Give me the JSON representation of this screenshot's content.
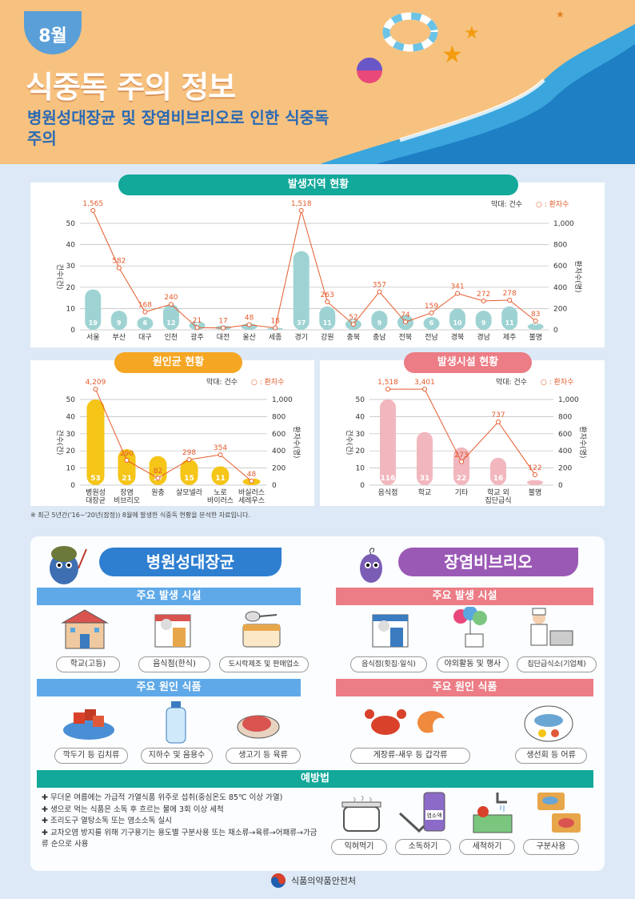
{
  "header": {
    "month": "8월",
    "title": "식중독 주의 정보",
    "subtitle": "병원성대장균 및 장염비브리오로 인한 식중독 주의"
  },
  "legend": {
    "bar": "막대: 건수",
    "line": "○ : 환자수"
  },
  "axis": {
    "left": "건수(건)",
    "right": "환자수(명)"
  },
  "charts": {
    "region": {
      "title": "발생지역 현황",
      "categories": [
        "서울",
        "부산",
        "대구",
        "인천",
        "광주",
        "대전",
        "울산",
        "세종",
        "경기",
        "강원",
        "충북",
        "충남",
        "전북",
        "전남",
        "경북",
        "경남",
        "제주",
        "불명"
      ],
      "cases": [
        19,
        9,
        6,
        12,
        4,
        2,
        3,
        1,
        37,
        11,
        5,
        9,
        7,
        6,
        10,
        9,
        11,
        3
      ],
      "patients": [
        1565,
        582,
        168,
        240,
        21,
        17,
        48,
        18,
        1518,
        263,
        52,
        357,
        74,
        159,
        341,
        272,
        278,
        83
      ],
      "ylim": [
        0,
        50
      ],
      "y2lim": [
        0,
        1000
      ]
    },
    "pathogen": {
      "title": "원인균 현황",
      "categories": [
        "병원성\n대장균",
        "장염\n비브리오",
        "원충",
        "살모넬라",
        "노로\n바이러스",
        "바실러스\n세레우스"
      ],
      "cases": [
        53,
        21,
        17,
        15,
        11,
        4
      ],
      "patients": [
        4209,
        290,
        82,
        298,
        354,
        48
      ],
      "ylim": [
        0,
        50
      ],
      "y2lim": [
        0,
        1000
      ]
    },
    "facility": {
      "title": "발생시설 현황",
      "categories": [
        "음식점",
        "학교",
        "기타",
        "학교 외\n집단급식",
        "불명"
      ],
      "cases": [
        116,
        31,
        22,
        16,
        3
      ],
      "patients": [
        1518,
        3401,
        273,
        737,
        122
      ],
      "ylim": [
        0,
        50
      ],
      "y2lim": [
        0,
        1000
      ]
    }
  },
  "chart_data": [
    {
      "type": "bar",
      "title": "발생지역 현황",
      "categories": [
        "서울",
        "부산",
        "대구",
        "인천",
        "광주",
        "대전",
        "울산",
        "세종",
        "경기",
        "강원",
        "충북",
        "충남",
        "전북",
        "전남",
        "경북",
        "경남",
        "제주",
        "불명"
      ],
      "series": [
        {
          "name": "건수",
          "values": [
            19,
            9,
            6,
            12,
            4,
            2,
            3,
            1,
            37,
            11,
            5,
            9,
            7,
            6,
            10,
            9,
            11,
            3
          ]
        },
        {
          "name": "환자수",
          "values": [
            1565,
            582,
            168,
            240,
            21,
            17,
            48,
            18,
            1518,
            263,
            52,
            357,
            74,
            159,
            341,
            272,
            278,
            83
          ]
        }
      ]
    },
    {
      "type": "bar",
      "title": "원인균 현황",
      "categories": [
        "병원성 대장균",
        "장염 비브리오",
        "원충",
        "살모넬라",
        "노로 바이러스",
        "바실러스 세레우스"
      ],
      "series": [
        {
          "name": "건수",
          "values": [
            53,
            21,
            17,
            15,
            11,
            4
          ]
        },
        {
          "name": "환자수",
          "values": [
            4209,
            290,
            82,
            298,
            354,
            48
          ]
        }
      ]
    },
    {
      "type": "bar",
      "title": "발생시설 현황",
      "categories": [
        "음식점",
        "학교",
        "기타",
        "학교 외 집단급식",
        "불명"
      ],
      "series": [
        {
          "name": "건수",
          "values": [
            116,
            31,
            22,
            16,
            3
          ]
        },
        {
          "name": "환자수",
          "values": [
            1518,
            3401,
            273,
            737,
            122
          ]
        }
      ]
    }
  ],
  "footnote": "※ 최근 5년간('16~'20년(잠정)) 8월에 발생한 식중독 현황을 분석한 자료입니다.",
  "ecoli": {
    "title": "병원성대장균",
    "facility_tab": "주요 발생 시설",
    "food_tab": "주요 원인 식품",
    "facilities": [
      "학교(고등)",
      "음식점(한식)",
      "도시락제조 및 판매업소"
    ],
    "foods": [
      "깍두기 등 김치류",
      "지하수 및 음용수",
      "생고기 등 육류"
    ]
  },
  "vibrio": {
    "title": "장염비브리오",
    "facility_tab": "주요 발생 시설",
    "food_tab": "주요 원인 식품",
    "facilities": [
      "음식점(횟집·일식)",
      "야외활동 및 행사",
      "집단급식소(기업체)"
    ],
    "foods": [
      "게장류-새우 등 갑각류",
      "생선회 등 어류"
    ]
  },
  "prevention": {
    "title": "예방법",
    "items": [
      "무더운 여름에는 가급적 가열식품 위주로 섭취(중심온도 85℃ 이상 가열)",
      "생으로 먹는 식품은 소독 후 흐르는 물에 3회 이상 세척",
      "조리도구 열탕소독 또는 염소소독 실시",
      "교차오염 방지를 위해 기구용기는 용도별 구분사용 또는 채소류→육류→어패류→가금류 순으로 사용"
    ],
    "icons": [
      "익혀먹기",
      "소독하기",
      "세척하기",
      "구분사용"
    ],
    "bottle_label": "염소액"
  },
  "footer": {
    "org": "식품의약품안전처"
  }
}
